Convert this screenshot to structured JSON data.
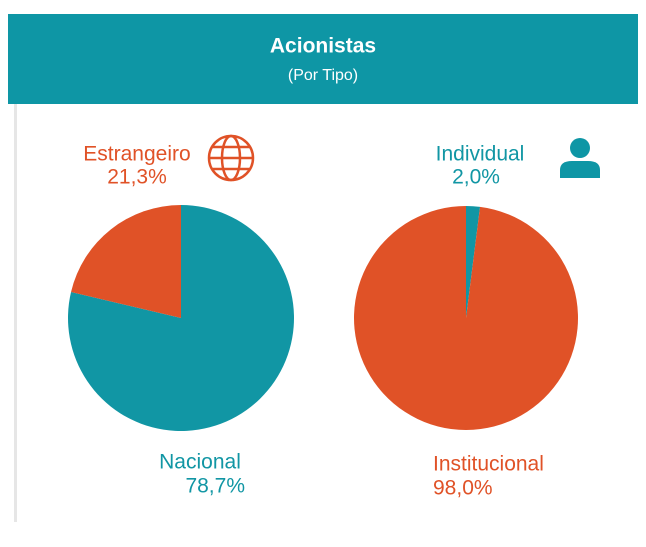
{
  "header": {
    "title": "Acionistas",
    "subtitle": "(Por Tipo)"
  },
  "chart_data": [
    {
      "type": "pie",
      "categories": [
        "Nacional",
        "Estrangeiro"
      ],
      "values": [
        78.7,
        21.3
      ],
      "value_labels": [
        "78,7%",
        "21,3%"
      ],
      "colors": [
        "#1196a4",
        "#e05227"
      ]
    },
    {
      "type": "pie",
      "categories": [
        "Individual",
        "Institucional"
      ],
      "values": [
        2.0,
        98.0
      ],
      "value_labels": [
        "2,0%",
        "98,0%"
      ],
      "colors": [
        "#1196a4",
        "#e05227"
      ]
    }
  ]
}
